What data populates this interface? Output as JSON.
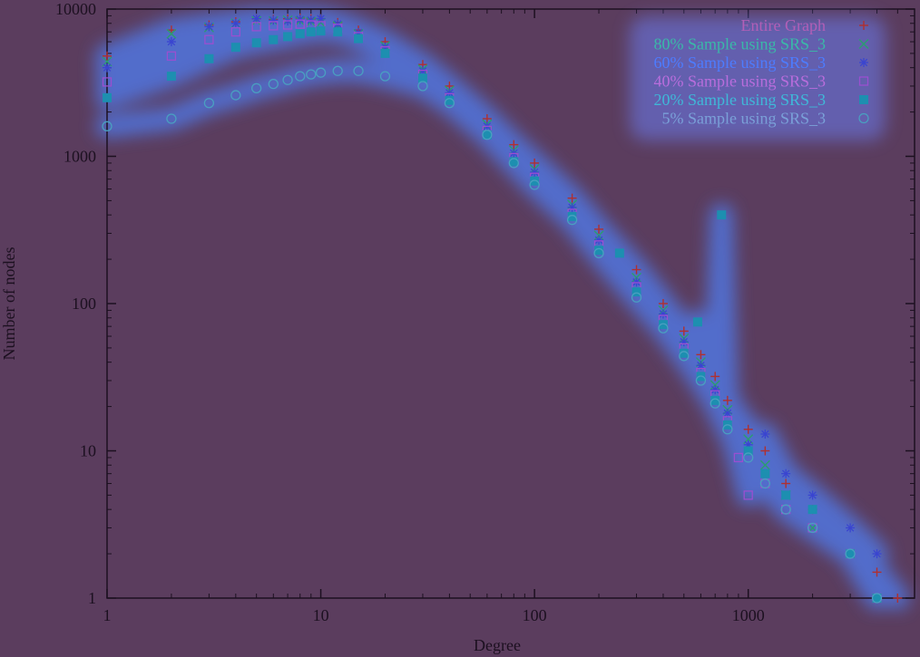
{
  "chart_data": {
    "type": "scatter",
    "xlabel": "Degree",
    "ylabel": "Number of nodes",
    "xscale": "log",
    "yscale": "log",
    "xlim": [
      1,
      6000
    ],
    "ylim": [
      1,
      10000
    ],
    "x_ticks": [
      {
        "value": 1,
        "label": "1"
      },
      {
        "value": 10,
        "label": "10"
      },
      {
        "value": 100,
        "label": "100"
      },
      {
        "value": 1000,
        "label": "1000"
      }
    ],
    "y_ticks": [
      {
        "value": 1,
        "label": "1"
      },
      {
        "value": 10,
        "label": "10"
      },
      {
        "value": 100,
        "label": "100"
      },
      {
        "value": 1000,
        "label": "1000"
      },
      {
        "value": 10000,
        "label": "10000"
      }
    ],
    "legend_position": "top-right",
    "grid": false,
    "background_color": "#5b3d5e",
    "series": [
      {
        "name": "Entire Graph",
        "marker": "plus",
        "color": "#b03030",
        "points": [
          [
            1,
            4800
          ],
          [
            2,
            7200
          ],
          [
            3,
            7800
          ],
          [
            4,
            8200
          ],
          [
            5,
            8600
          ],
          [
            6,
            8500
          ],
          [
            7,
            8600
          ],
          [
            8,
            8700
          ],
          [
            9,
            8600
          ],
          [
            10,
            8600
          ],
          [
            12,
            8100
          ],
          [
            15,
            7200
          ],
          [
            20,
            6000
          ],
          [
            30,
            4200
          ],
          [
            40,
            3000
          ],
          [
            60,
            1800
          ],
          [
            80,
            1200
          ],
          [
            100,
            900
          ],
          [
            150,
            520
          ],
          [
            200,
            320
          ],
          [
            300,
            170
          ],
          [
            400,
            100
          ],
          [
            500,
            65
          ],
          [
            600,
            45
          ],
          [
            700,
            32
          ],
          [
            800,
            22
          ],
          [
            1000,
            14
          ],
          [
            1200,
            10
          ],
          [
            1500,
            6
          ],
          [
            2000,
            4
          ],
          [
            3000,
            2
          ],
          [
            4000,
            1.5
          ],
          [
            5000,
            1
          ]
        ]
      },
      {
        "name": "80% Sample using SRS_3",
        "marker": "cross",
        "color": "#2a9d70",
        "points": [
          [
            1,
            4400
          ],
          [
            2,
            6800
          ],
          [
            3,
            7500
          ],
          [
            4,
            8000
          ],
          [
            5,
            8300
          ],
          [
            6,
            8300
          ],
          [
            7,
            8400
          ],
          [
            8,
            8300
          ],
          [
            9,
            8200
          ],
          [
            10,
            8100
          ],
          [
            12,
            7700
          ],
          [
            15,
            6800
          ],
          [
            20,
            5600
          ],
          [
            30,
            3900
          ],
          [
            40,
            2800
          ],
          [
            60,
            1650
          ],
          [
            80,
            1100
          ],
          [
            100,
            820
          ],
          [
            150,
            470
          ],
          [
            200,
            290
          ],
          [
            300,
            150
          ],
          [
            400,
            90
          ],
          [
            500,
            58
          ],
          [
            600,
            40
          ],
          [
            700,
            28
          ],
          [
            800,
            19
          ],
          [
            1000,
            12
          ],
          [
            1200,
            8
          ],
          [
            1500,
            5
          ],
          [
            2000,
            3
          ],
          [
            3000,
            2
          ],
          [
            4000,
            1
          ]
        ]
      },
      {
        "name": "60% Sample using SRS_3",
        "marker": "star",
        "color": "#3a45d0",
        "points": [
          [
            1,
            4000
          ],
          [
            2,
            6000
          ],
          [
            3,
            7600
          ],
          [
            4,
            8000
          ],
          [
            5,
            8600
          ],
          [
            6,
            8400
          ],
          [
            7,
            8300
          ],
          [
            8,
            8500
          ],
          [
            9,
            8400
          ],
          [
            10,
            8600
          ],
          [
            12,
            7900
          ],
          [
            15,
            6900
          ],
          [
            20,
            5500
          ],
          [
            30,
            3800
          ],
          [
            40,
            2700
          ],
          [
            60,
            1600
          ],
          [
            80,
            1050
          ],
          [
            100,
            780
          ],
          [
            150,
            450
          ],
          [
            200,
            270
          ],
          [
            300,
            140
          ],
          [
            400,
            85
          ],
          [
            500,
            55
          ],
          [
            600,
            38
          ],
          [
            700,
            26
          ],
          [
            800,
            18
          ],
          [
            1000,
            11
          ],
          [
            1200,
            13
          ],
          [
            1500,
            7
          ],
          [
            2000,
            5
          ],
          [
            3000,
            3
          ],
          [
            4000,
            2
          ]
        ]
      },
      {
        "name": "40% Sample using SRS_3",
        "marker": "square-open",
        "color": "#9a4fd0",
        "points": [
          [
            1,
            3200
          ],
          [
            2,
            4800
          ],
          [
            3,
            6200
          ],
          [
            4,
            7000
          ],
          [
            5,
            7600
          ],
          [
            6,
            7700
          ],
          [
            7,
            7800
          ],
          [
            8,
            7900
          ],
          [
            9,
            7800
          ],
          [
            10,
            7700
          ],
          [
            12,
            7400
          ],
          [
            15,
            6500
          ],
          [
            20,
            5200
          ],
          [
            30,
            3600
          ],
          [
            40,
            2500
          ],
          [
            60,
            1500
          ],
          [
            80,
            980
          ],
          [
            100,
            720
          ],
          [
            150,
            410
          ],
          [
            200,
            250
          ],
          [
            300,
            130
          ],
          [
            400,
            78
          ],
          [
            500,
            50
          ],
          [
            600,
            34
          ],
          [
            700,
            24
          ],
          [
            800,
            16
          ],
          [
            900,
            9
          ],
          [
            1000,
            5
          ],
          [
            1200,
            6
          ],
          [
            1500,
            4
          ],
          [
            2000,
            3
          ],
          [
            3000,
            2
          ],
          [
            4000,
            1
          ]
        ]
      },
      {
        "name": "20% Sample using SRS_3",
        "marker": "square-filled",
        "color": "#1d8fb0",
        "points": [
          [
            1,
            2500
          ],
          [
            2,
            3500
          ],
          [
            3,
            4600
          ],
          [
            4,
            5500
          ],
          [
            5,
            5900
          ],
          [
            6,
            6200
          ],
          [
            7,
            6500
          ],
          [
            8,
            6800
          ],
          [
            9,
            7000
          ],
          [
            10,
            7100
          ],
          [
            12,
            7000
          ],
          [
            15,
            6300
          ],
          [
            20,
            5000
          ],
          [
            30,
            3400
          ],
          [
            40,
            2400
          ],
          [
            60,
            1400
          ],
          [
            80,
            920
          ],
          [
            100,
            680
          ],
          [
            150,
            390
          ],
          [
            200,
            230
          ],
          [
            250,
            220
          ],
          [
            300,
            120
          ],
          [
            400,
            72
          ],
          [
            500,
            46
          ],
          [
            580,
            75
          ],
          [
            600,
            32
          ],
          [
            700,
            22
          ],
          [
            750,
            400
          ],
          [
            800,
            15
          ],
          [
            1000,
            10
          ],
          [
            1200,
            7
          ],
          [
            1500,
            5
          ],
          [
            2000,
            4
          ],
          [
            3000,
            2
          ],
          [
            4000,
            1
          ]
        ]
      },
      {
        "name": "5% Sample using SRS_3",
        "marker": "circle-open",
        "color": "#4a9fc0",
        "points": [
          [
            1,
            1600
          ],
          [
            2,
            1800
          ],
          [
            3,
            2300
          ],
          [
            4,
            2600
          ],
          [
            5,
            2900
          ],
          [
            6,
            3100
          ],
          [
            7,
            3300
          ],
          [
            8,
            3500
          ],
          [
            9,
            3600
          ],
          [
            10,
            3700
          ],
          [
            12,
            3800
          ],
          [
            15,
            3800
          ],
          [
            20,
            3500
          ],
          [
            30,
            3000
          ],
          [
            40,
            2300
          ],
          [
            60,
            1400
          ],
          [
            80,
            900
          ],
          [
            100,
            640
          ],
          [
            150,
            370
          ],
          [
            200,
            220
          ],
          [
            300,
            110
          ],
          [
            400,
            68
          ],
          [
            500,
            44
          ],
          [
            600,
            30
          ],
          [
            700,
            21
          ],
          [
            800,
            14
          ],
          [
            1000,
            9
          ],
          [
            1200,
            6
          ],
          [
            1500,
            4
          ],
          [
            2000,
            3
          ],
          [
            3000,
            2
          ],
          [
            4000,
            1
          ]
        ]
      }
    ]
  }
}
